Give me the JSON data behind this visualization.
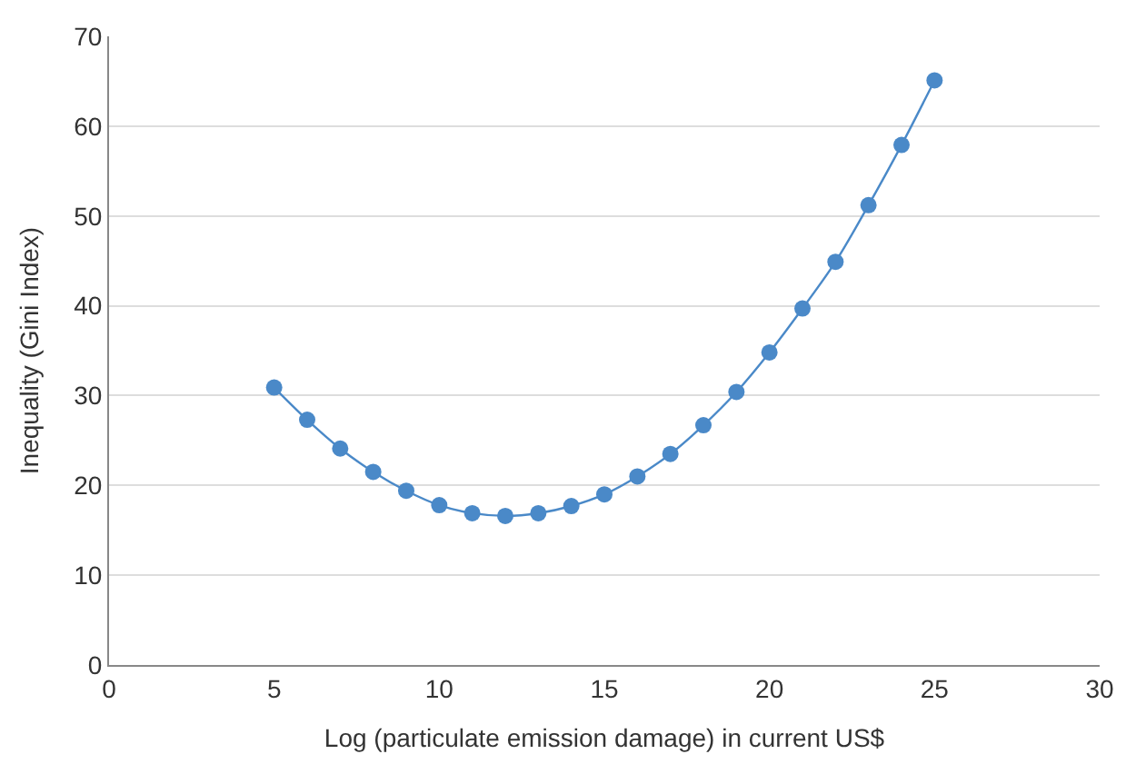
{
  "chart_data": {
    "type": "line",
    "xlabel": "Log (particulate emission damage) in current US$",
    "ylabel": "Inequality (Gini Index)",
    "x": [
      5,
      6,
      7,
      8,
      9,
      10,
      11,
      12,
      13,
      14,
      15,
      16,
      17,
      18,
      19,
      20,
      21,
      22,
      23,
      24,
      25
    ],
    "series": [
      {
        "color": "#4a89c8",
        "values": [
          30.9,
          27.3,
          24.1,
          21.5,
          19.4,
          17.8,
          16.9,
          16.6,
          16.9,
          17.7,
          19.0,
          21.0,
          23.5,
          26.7,
          30.4,
          34.8,
          39.7,
          44.9,
          51.2,
          57.9,
          65.1
        ]
      }
    ],
    "xlim": [
      0,
      30
    ],
    "xticks": [
      0,
      5,
      10,
      15,
      20,
      25,
      30
    ],
    "ylim": [
      0,
      70
    ],
    "yticks": [
      0,
      10,
      20,
      30,
      40,
      50,
      60,
      70
    ],
    "grid": "y",
    "marker": "circle",
    "line_style": "solid",
    "legend": false
  }
}
